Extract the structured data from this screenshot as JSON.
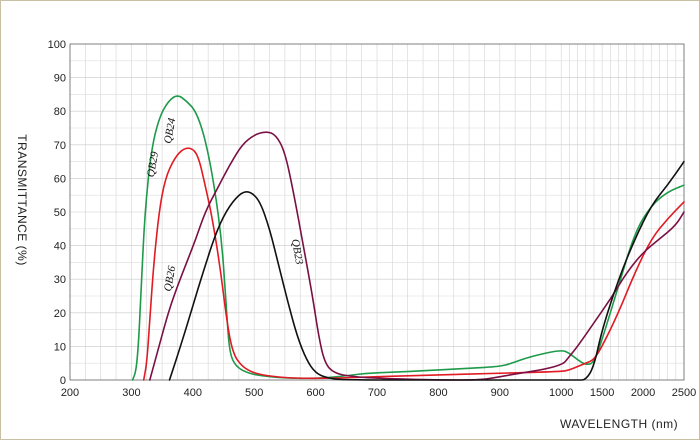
{
  "chart_data": {
    "type": "line",
    "xlabel": "WAVELENGTH (nm)",
    "ylabel": "TRANSMITTANCE  (%)",
    "ylim": [
      0,
      100
    ],
    "y_ticks": [
      "0",
      "10",
      "20",
      "30",
      "40",
      "50",
      "60",
      "70",
      "80",
      "90",
      "100"
    ],
    "x_ticks": [
      "200",
      "300",
      "400",
      "500",
      "600",
      "700",
      "800",
      "900",
      "1000",
      "1500",
      "2000",
      "2500"
    ],
    "grid": true,
    "series": [
      {
        "name": "QB29",
        "color": "#1e9a4a",
        "points": [
          [
            302,
            0
          ],
          [
            308,
            3
          ],
          [
            312,
            12
          ],
          [
            316,
            28
          ],
          [
            322,
            50
          ],
          [
            332,
            68
          ],
          [
            345,
            78
          ],
          [
            360,
            83
          ],
          [
            375,
            85
          ],
          [
            390,
            83
          ],
          [
            405,
            80
          ],
          [
            420,
            72
          ],
          [
            435,
            58
          ],
          [
            448,
            40
          ],
          [
            455,
            20
          ],
          [
            460,
            8
          ],
          [
            470,
            4
          ],
          [
            490,
            2
          ],
          [
            520,
            1
          ],
          [
            560,
            0.5
          ],
          [
            600,
            0.5
          ],
          [
            640,
            1
          ],
          [
            680,
            2
          ],
          [
            750,
            2.5
          ],
          [
            850,
            3.5
          ],
          [
            900,
            4
          ],
          [
            920,
            5
          ],
          [
            950,
            7
          ],
          [
            1000,
            9
          ],
          [
            1100,
            8
          ],
          [
            1200,
            6
          ],
          [
            1300,
            4.5
          ],
          [
            1400,
            5
          ],
          [
            1500,
            12
          ],
          [
            1700,
            28
          ],
          [
            1900,
            44
          ],
          [
            2100,
            52
          ],
          [
            2300,
            56
          ],
          [
            2500,
            58
          ]
        ]
      },
      {
        "name": "QB24",
        "color": "#e01b24",
        "points": [
          [
            320,
            0
          ],
          [
            325,
            5
          ],
          [
            330,
            18
          ],
          [
            336,
            34
          ],
          [
            345,
            50
          ],
          [
            355,
            60
          ],
          [
            370,
            66
          ],
          [
            385,
            69
          ],
          [
            400,
            69
          ],
          [
            410,
            66
          ],
          [
            420,
            58
          ],
          [
            432,
            48
          ],
          [
            445,
            33
          ],
          [
            455,
            18
          ],
          [
            465,
            8
          ],
          [
            480,
            4
          ],
          [
            500,
            2
          ],
          [
            530,
            1
          ],
          [
            570,
            0.5
          ],
          [
            620,
            0.5
          ],
          [
            700,
            1
          ],
          [
            800,
            1.5
          ],
          [
            900,
            2
          ],
          [
            1000,
            2.5
          ],
          [
            1100,
            3
          ],
          [
            1200,
            4
          ],
          [
            1300,
            5
          ],
          [
            1400,
            6
          ],
          [
            1500,
            10
          ],
          [
            1700,
            20
          ],
          [
            1900,
            32
          ],
          [
            2100,
            42
          ],
          [
            2300,
            48
          ],
          [
            2500,
            53
          ]
        ]
      },
      {
        "name": "QB26",
        "color": "#7a1043",
        "points": [
          [
            330,
            0
          ],
          [
            345,
            10
          ],
          [
            360,
            20
          ],
          [
            375,
            28
          ],
          [
            390,
            35
          ],
          [
            405,
            42
          ],
          [
            420,
            50
          ],
          [
            440,
            57
          ],
          [
            460,
            64
          ],
          [
            480,
            70
          ],
          [
            500,
            73
          ],
          [
            520,
            74
          ],
          [
            535,
            73
          ],
          [
            550,
            68
          ],
          [
            565,
            55
          ],
          [
            580,
            40
          ],
          [
            595,
            25
          ],
          [
            605,
            13
          ],
          [
            615,
            5
          ],
          [
            630,
            2
          ],
          [
            660,
            1
          ],
          [
            700,
            0.5
          ],
          [
            800,
            0
          ],
          [
            870,
            0
          ],
          [
            900,
            1
          ],
          [
            1000,
            4
          ],
          [
            1100,
            7
          ],
          [
            1200,
            10
          ],
          [
            1400,
            17
          ],
          [
            1600,
            24
          ],
          [
            1800,
            32
          ],
          [
            2000,
            38
          ],
          [
            2200,
            42
          ],
          [
            2400,
            46
          ],
          [
            2500,
            50
          ]
        ]
      },
      {
        "name": "QB23",
        "color": "#111111",
        "points": [
          [
            362,
            0
          ],
          [
            380,
            10
          ],
          [
            400,
            22
          ],
          [
            420,
            34
          ],
          [
            440,
            45
          ],
          [
            460,
            52
          ],
          [
            480,
            56
          ],
          [
            495,
            56
          ],
          [
            510,
            53
          ],
          [
            525,
            45
          ],
          [
            540,
            34
          ],
          [
            555,
            23
          ],
          [
            570,
            13
          ],
          [
            585,
            6
          ],
          [
            600,
            2
          ],
          [
            620,
            0.5
          ],
          [
            650,
            0
          ],
          [
            800,
            0
          ],
          [
            1000,
            0
          ],
          [
            1200,
            0
          ],
          [
            1300,
            0
          ],
          [
            1400,
            4
          ],
          [
            1500,
            15
          ],
          [
            1700,
            30
          ],
          [
            1900,
            42
          ],
          [
            2100,
            52
          ],
          [
            2300,
            58
          ],
          [
            2500,
            65
          ]
        ]
      }
    ]
  }
}
